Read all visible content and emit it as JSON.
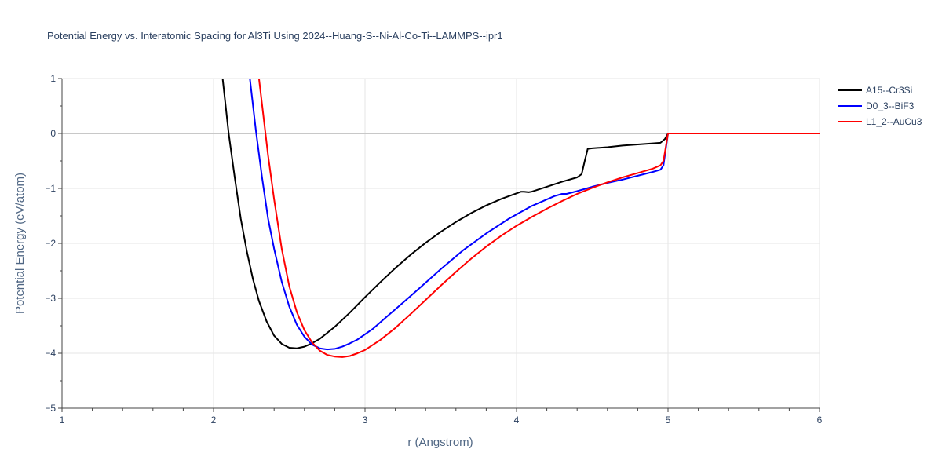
{
  "chart_data": {
    "type": "line",
    "title": "Potential Energy vs. Interatomic Spacing for Al3Ti Using 2024--Huang-S--Ni-Al-Co-Ti--LAMMPS--ipr1",
    "xlabel": "r (Angstrom)",
    "ylabel": "Potential Energy (eV/atom)",
    "xlim": [
      1,
      6
    ],
    "ylim": [
      -5,
      1
    ],
    "xticks": [
      1,
      2,
      3,
      4,
      5,
      6
    ],
    "xtick_labels": [
      "1",
      "2",
      "3",
      "4",
      "5",
      "6"
    ],
    "yticks": [
      1,
      0,
      -1,
      -2,
      -3,
      -4,
      -5
    ],
    "ytick_labels": [
      "1",
      "0",
      "−1",
      "−2",
      "−3",
      "−4",
      "−5"
    ],
    "grid": true,
    "legend_position": "top-right",
    "series": [
      {
        "name": "A15--Cr3Si",
        "color": "#000000",
        "x": [
          2.06,
          2.1,
          2.14,
          2.18,
          2.22,
          2.26,
          2.3,
          2.35,
          2.4,
          2.45,
          2.5,
          2.55,
          2.6,
          2.65,
          2.7,
          2.75,
          2.8,
          2.85,
          2.9,
          3.0,
          3.1,
          3.2,
          3.3,
          3.4,
          3.5,
          3.6,
          3.7,
          3.8,
          3.9,
          4.0,
          4.03,
          4.05,
          4.08,
          4.1,
          4.2,
          4.3,
          4.4,
          4.43,
          4.45,
          4.47,
          4.5,
          4.6,
          4.7,
          4.8,
          4.9,
          4.95,
          4.98,
          5.0,
          5.2,
          5.5,
          6.0
        ],
        "y": [
          1.0,
          0.0,
          -0.8,
          -1.55,
          -2.15,
          -2.65,
          -3.05,
          -3.42,
          -3.68,
          -3.83,
          -3.9,
          -3.91,
          -3.88,
          -3.82,
          -3.74,
          -3.63,
          -3.52,
          -3.39,
          -3.26,
          -2.98,
          -2.71,
          -2.45,
          -2.21,
          -1.99,
          -1.79,
          -1.61,
          -1.45,
          -1.31,
          -1.19,
          -1.09,
          -1.06,
          -1.06,
          -1.07,
          -1.06,
          -0.97,
          -0.88,
          -0.8,
          -0.74,
          -0.5,
          -0.28,
          -0.27,
          -0.25,
          -0.22,
          -0.2,
          -0.18,
          -0.17,
          -0.1,
          0.0,
          0.0,
          0.0,
          0.0
        ]
      },
      {
        "name": "D0_3--BiF3",
        "color": "#0000ff",
        "x": [
          2.24,
          2.28,
          2.32,
          2.36,
          2.4,
          2.45,
          2.5,
          2.55,
          2.6,
          2.65,
          2.7,
          2.75,
          2.8,
          2.85,
          2.9,
          2.95,
          3.05,
          3.15,
          3.25,
          3.35,
          3.5,
          3.65,
          3.8,
          3.95,
          4.1,
          4.25,
          4.3,
          4.33,
          4.4,
          4.5,
          4.6,
          4.7,
          4.8,
          4.9,
          4.95,
          4.97,
          5.0,
          5.2,
          5.5,
          6.0
        ],
        "y": [
          1.0,
          0.05,
          -0.8,
          -1.55,
          -2.1,
          -2.7,
          -3.15,
          -3.48,
          -3.7,
          -3.84,
          -3.91,
          -3.93,
          -3.92,
          -3.88,
          -3.82,
          -3.75,
          -3.56,
          -3.32,
          -3.08,
          -2.84,
          -2.47,
          -2.12,
          -1.82,
          -1.55,
          -1.32,
          -1.14,
          -1.1,
          -1.1,
          -1.05,
          -0.97,
          -0.9,
          -0.84,
          -0.77,
          -0.7,
          -0.66,
          -0.58,
          0.0,
          0.0,
          0.0,
          0.0
        ]
      },
      {
        "name": "L1_2--AuCu3",
        "color": "#ff0000",
        "x": [
          2.3,
          2.33,
          2.36,
          2.4,
          2.45,
          2.5,
          2.55,
          2.6,
          2.65,
          2.7,
          2.75,
          2.8,
          2.85,
          2.9,
          2.95,
          3.0,
          3.1,
          3.2,
          3.3,
          3.4,
          3.5,
          3.6,
          3.7,
          3.8,
          3.9,
          4.0,
          4.1,
          4.2,
          4.3,
          4.4,
          4.5,
          4.6,
          4.7,
          4.8,
          4.9,
          4.95,
          4.97,
          5.0,
          5.2,
          5.5,
          6.0
        ],
        "y": [
          1.0,
          0.3,
          -0.4,
          -1.2,
          -2.1,
          -2.78,
          -3.25,
          -3.58,
          -3.8,
          -3.95,
          -4.03,
          -4.06,
          -4.07,
          -4.05,
          -4.0,
          -3.94,
          -3.76,
          -3.54,
          -3.29,
          -3.03,
          -2.77,
          -2.52,
          -2.28,
          -2.06,
          -1.86,
          -1.68,
          -1.52,
          -1.37,
          -1.23,
          -1.1,
          -0.99,
          -0.89,
          -0.8,
          -0.72,
          -0.64,
          -0.58,
          -0.5,
          0.0,
          0.0,
          0.0,
          0.0
        ]
      }
    ]
  }
}
